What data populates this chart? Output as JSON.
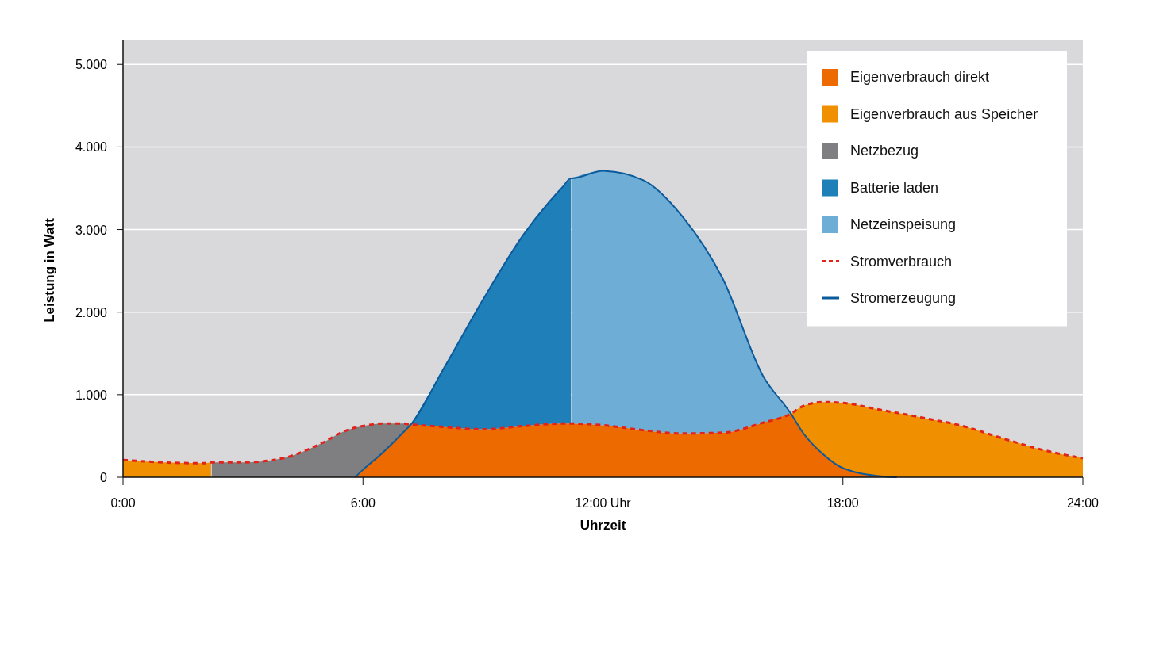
{
  "chart_data": {
    "type": "area",
    "xlabel": "Uhrzeit",
    "ylabel": "Leistung in Watt",
    "x": [
      0,
      1,
      2,
      2.2,
      2.22,
      3,
      4,
      4.5,
      5,
      5.5,
      5.8,
      6,
      6.5,
      7,
      7.2,
      8,
      9,
      10,
      11,
      11.2,
      11.22,
      12,
      13,
      14,
      15,
      16,
      16.7,
      17,
      17.5,
      18,
      19,
      19.35,
      20,
      21,
      22,
      23,
      24
    ],
    "stacked": true,
    "series": [
      {
        "name": "Eigenverbrauch direkt",
        "color": "#ec6a00",
        "values": [
          null,
          null,
          null,
          null,
          null,
          null,
          null,
          null,
          null,
          null,
          0,
          90,
          300,
          540,
          640,
          610,
          580,
          620,
          650,
          650,
          650,
          630,
          570,
          530,
          540,
          660,
          770,
          540,
          280,
          110,
          10,
          0,
          null,
          null,
          null,
          null,
          null
        ]
      },
      {
        "name": "Eigenverbrauch aus Speicher",
        "color": "#f09000",
        "values": [
          210,
          180,
          170,
          180,
          null,
          null,
          null,
          null,
          null,
          null,
          null,
          null,
          null,
          null,
          null,
          null,
          null,
          null,
          null,
          null,
          null,
          null,
          null,
          null,
          null,
          null,
          0,
          320,
          630,
          790,
          800,
          780,
          720,
          620,
          470,
          330,
          230
        ]
      },
      {
        "name": "Netzbezug",
        "color": "#7f7f81",
        "values": [
          null,
          null,
          null,
          null,
          180,
          180,
          230,
          310,
          420,
          550,
          600,
          530,
          350,
          110,
          0,
          null,
          null,
          null,
          null,
          null,
          null,
          null,
          null,
          null,
          null,
          null,
          null,
          null,
          null,
          null,
          null,
          null,
          null,
          null,
          null,
          null,
          null
        ]
      },
      {
        "name": "Batterie laden",
        "color": "#1f7fb8",
        "values": [
          null,
          null,
          null,
          null,
          null,
          null,
          null,
          null,
          null,
          null,
          null,
          null,
          null,
          null,
          0,
          690,
          1570,
          2310,
          2870,
          2970,
          null,
          null,
          null,
          null,
          null,
          null,
          null,
          null,
          null,
          null,
          null,
          null,
          null,
          null,
          null,
          null,
          null
        ]
      },
      {
        "name": "Netzeinspeisung",
        "color": "#6eadd5",
        "values": [
          null,
          null,
          null,
          null,
          null,
          null,
          null,
          null,
          null,
          null,
          null,
          null,
          null,
          null,
          null,
          null,
          null,
          null,
          null,
          null,
          2970,
          3080,
          3030,
          2620,
          1860,
          570,
          0,
          null,
          null,
          null,
          null,
          null,
          null,
          null,
          null,
          null,
          null
        ]
      },
      {
        "name": "Stromverbrauch",
        "type": "line",
        "line_style": "dashed",
        "color": "#e2231a",
        "values": [
          210,
          180,
          170,
          180,
          180,
          180,
          230,
          310,
          420,
          550,
          600,
          620,
          650,
          650,
          640,
          610,
          580,
          620,
          650,
          650,
          650,
          630,
          570,
          530,
          540,
          660,
          770,
          860,
          910,
          900,
          810,
          780,
          720,
          620,
          470,
          330,
          230
        ]
      },
      {
        "name": "Stromerzeugung",
        "type": "line",
        "line_style": "solid",
        "color": "#0b5a9b",
        "values": [
          null,
          null,
          null,
          null,
          null,
          null,
          null,
          null,
          null,
          null,
          0,
          90,
          300,
          540,
          640,
          1300,
          2150,
          2930,
          3520,
          3620,
          3620,
          3710,
          3600,
          3150,
          2400,
          1230,
          770,
          540,
          280,
          110,
          10,
          0,
          null,
          null,
          null,
          null,
          null
        ]
      }
    ],
    "xlim": [
      0,
      24
    ],
    "xticks": [
      {
        "value": 0,
        "label": "0:00"
      },
      {
        "value": 6,
        "label": "6:00"
      },
      {
        "value": 12,
        "label": "12:00 Uhr"
      },
      {
        "value": 18,
        "label": "18:00"
      },
      {
        "value": 24,
        "label": "24:00"
      }
    ],
    "ylim": [
      0,
      5300
    ],
    "yticks": [
      0,
      {
        "value": 1000,
        "label": "1.000"
      },
      {
        "value": 2000,
        "label": "2.000"
      },
      {
        "value": 3000,
        "label": "3.000"
      },
      {
        "value": 4000,
        "label": "4.000"
      },
      {
        "value": 5000,
        "label": "5.000"
      }
    ],
    "grid": "y",
    "legend": "top right"
  }
}
